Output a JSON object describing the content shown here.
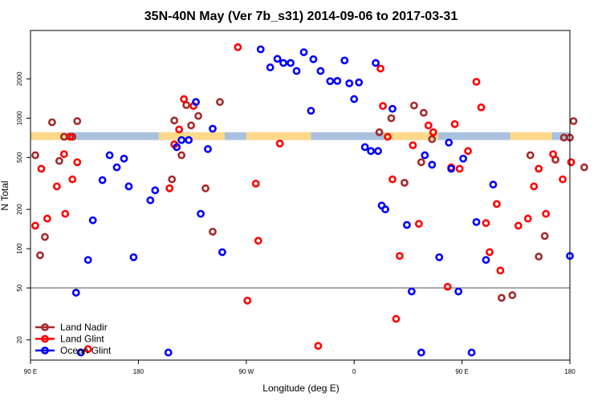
{
  "chart_data": {
    "type": "scatter",
    "title": "35N-40N May (Ver 7b_s31)   2014-09-06 to 2017-03-31",
    "xlabel": "Longitude (deg E)",
    "ylabel": "N Total",
    "x_ticks": [
      {
        "value": 90,
        "label": "90 E"
      },
      {
        "value": 180,
        "label": "180"
      },
      {
        "value": 270,
        "label": "90 W"
      },
      {
        "value": 360,
        "label": "0"
      },
      {
        "value": 450,
        "label": "90 E"
      },
      {
        "value": 540,
        "label": "180"
      }
    ],
    "xlim": [
      90,
      540
    ],
    "y_scale": "log",
    "y_ticks": [
      20,
      50,
      100,
      200,
      500,
      1000,
      2000
    ],
    "ylim": [
      14,
      4700
    ],
    "reference_line": 50,
    "coverage_band": {
      "y_low": 680,
      "y_high": 780,
      "colors": {
        "land": "#ffd98a",
        "ocean": "#a9c1de"
      }
    },
    "legend_position": "bottom-left",
    "series": [
      {
        "name": "Land Nadir",
        "color": "#a52a2a",
        "points": [
          [
            94,
            520
          ],
          [
            98,
            89
          ],
          [
            102,
            123
          ],
          [
            108,
            930
          ],
          [
            114,
            470
          ],
          [
            118,
            720
          ],
          [
            125,
            720
          ],
          [
            129,
            950
          ],
          [
            208,
            340
          ],
          [
            210,
            960
          ],
          [
            216,
            520
          ],
          [
            220,
            1260
          ],
          [
            224,
            880
          ],
          [
            230,
            1040
          ],
          [
            236,
            290
          ],
          [
            242,
            135
          ],
          [
            248,
            1330
          ],
          [
            381,
            780
          ],
          [
            391,
            1000
          ],
          [
            402,
            320
          ],
          [
            410,
            1250
          ],
          [
            416,
            460
          ],
          [
            418,
            1100
          ],
          [
            425,
            690
          ],
          [
            483,
            42
          ],
          [
            492,
            44
          ],
          [
            507,
            520
          ],
          [
            514,
            87
          ],
          [
            519,
            125
          ],
          [
            528,
            480
          ],
          [
            535,
            710
          ],
          [
            540,
            710
          ],
          [
            543,
            950
          ],
          [
            552,
            420
          ]
        ]
      },
      {
        "name": "Land Glint",
        "color": "#ff0000",
        "points": [
          [
            94,
            150
          ],
          [
            99,
            410
          ],
          [
            104,
            170
          ],
          [
            112,
            300
          ],
          [
            118,
            530
          ],
          [
            119,
            185
          ],
          [
            123,
            720
          ],
          [
            125,
            340
          ],
          [
            129,
            460
          ],
          [
            138,
            17
          ],
          [
            206,
            290
          ],
          [
            210,
            630
          ],
          [
            214,
            820
          ],
          [
            218,
            1400
          ],
          [
            226,
            1240
          ],
          [
            263,
            3500
          ],
          [
            271,
            40
          ],
          [
            278,
            315
          ],
          [
            280,
            115
          ],
          [
            298,
            640
          ],
          [
            330,
            18
          ],
          [
            382,
            2400
          ],
          [
            384,
            1240
          ],
          [
            388,
            720
          ],
          [
            392,
            340
          ],
          [
            395,
            29
          ],
          [
            398,
            88
          ],
          [
            409,
            620
          ],
          [
            414,
            155
          ],
          [
            422,
            880
          ],
          [
            426,
            780
          ],
          [
            438,
            51
          ],
          [
            441,
            420
          ],
          [
            444,
            900
          ],
          [
            448,
            410
          ],
          [
            455,
            560
          ],
          [
            462,
            1900
          ],
          [
            466,
            1210
          ],
          [
            470,
            157
          ],
          [
            473,
            94
          ],
          [
            479,
            220
          ],
          [
            482,
            68
          ],
          [
            497,
            150
          ],
          [
            505,
            170
          ],
          [
            510,
            300
          ],
          [
            514,
            410
          ],
          [
            520,
            185
          ],
          [
            526,
            530
          ],
          [
            534,
            340
          ],
          [
            541,
            460
          ]
        ]
      },
      {
        "name": "Ocean Glint",
        "color": "#0000ff",
        "points": [
          [
            128,
            46
          ],
          [
            132,
            16
          ],
          [
            138,
            82
          ],
          [
            142,
            165
          ],
          [
            150,
            335
          ],
          [
            156,
            520
          ],
          [
            162,
            420
          ],
          [
            168,
            490
          ],
          [
            172,
            300
          ],
          [
            176,
            86
          ],
          [
            190,
            235
          ],
          [
            194,
            280
          ],
          [
            205,
            16
          ],
          [
            212,
            600
          ],
          [
            216,
            680
          ],
          [
            222,
            680
          ],
          [
            228,
            1330
          ],
          [
            232,
            185
          ],
          [
            238,
            580
          ],
          [
            242,
            830
          ],
          [
            250,
            94
          ],
          [
            282,
            3370
          ],
          [
            290,
            2450
          ],
          [
            296,
            2850
          ],
          [
            301,
            2650
          ],
          [
            307,
            2650
          ],
          [
            312,
            2300
          ],
          [
            318,
            3200
          ],
          [
            324,
            1140
          ],
          [
            326,
            2830
          ],
          [
            332,
            2300
          ],
          [
            340,
            1920
          ],
          [
            346,
            1930
          ],
          [
            352,
            2770
          ],
          [
            356,
            1850
          ],
          [
            360,
            1400
          ],
          [
            364,
            1880
          ],
          [
            369,
            600
          ],
          [
            374,
            560
          ],
          [
            378,
            2650
          ],
          [
            380,
            560
          ],
          [
            383,
            214
          ],
          [
            386,
            200
          ],
          [
            392,
            1180
          ],
          [
            404,
            152
          ],
          [
            408,
            47
          ],
          [
            416,
            16
          ],
          [
            419,
            520
          ],
          [
            425,
            440
          ],
          [
            431,
            86
          ],
          [
            439,
            650
          ],
          [
            441,
            410
          ],
          [
            447,
            47
          ],
          [
            451,
            490
          ],
          [
            458,
            16
          ],
          [
            462,
            160
          ],
          [
            470,
            82
          ],
          [
            476,
            310
          ],
          [
            540,
            88
          ]
        ]
      }
    ]
  }
}
